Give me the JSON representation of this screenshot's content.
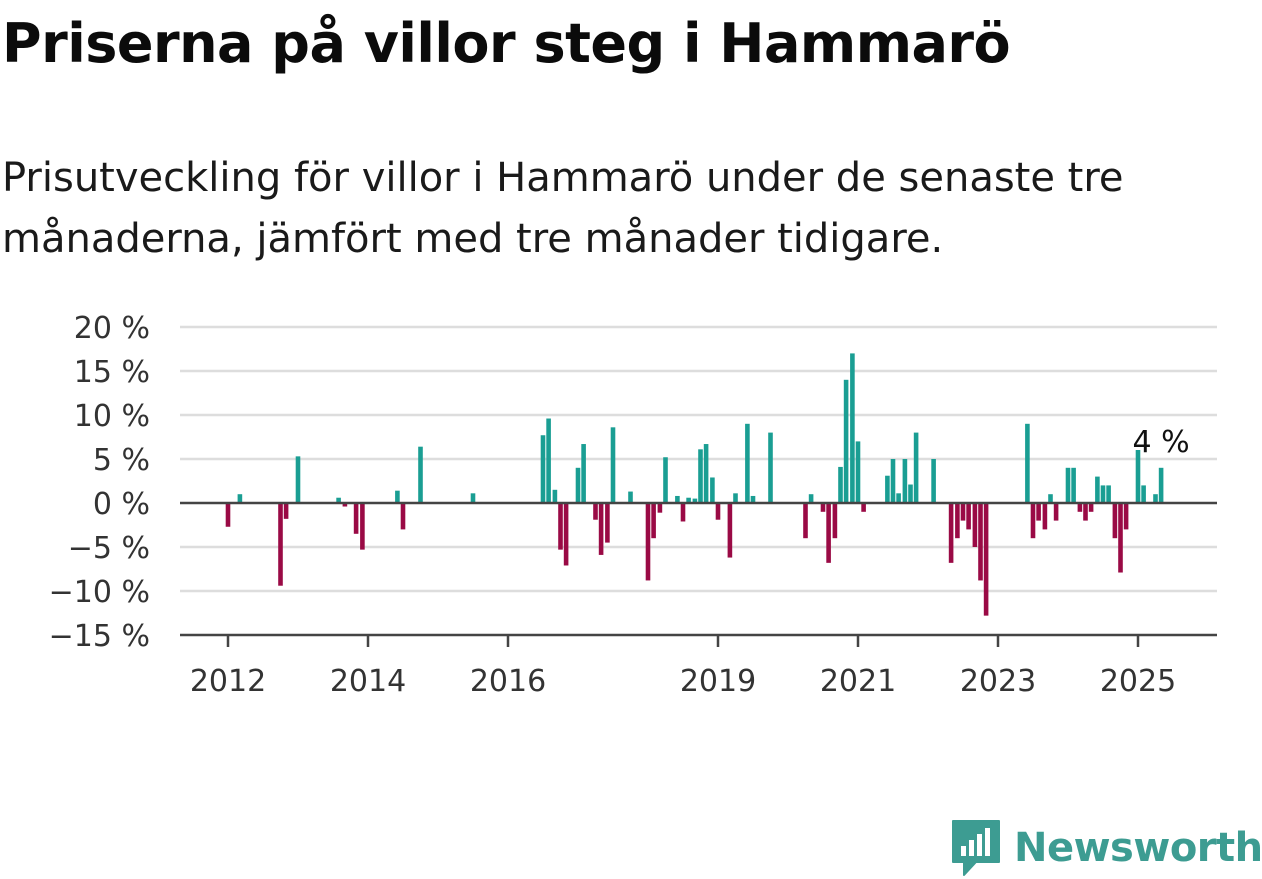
{
  "title": "Priserna på villor steg i Hammarö",
  "subtitle": "Prisutveckling för villor i Hammarö under de senaste tre månaderna, jämfört med tre månader tidigare.",
  "brand": "Newsworthy",
  "colors": {
    "positive": "#1a9e93",
    "negative": "#9a0a45",
    "grid": "#dddddd",
    "axis": "#444444",
    "brand": "#3d9c92"
  },
  "chart_data": {
    "type": "bar",
    "x_unit": "year",
    "y_unit": "%",
    "ylim": [
      -15,
      20
    ],
    "y_ticks": [
      20,
      15,
      10,
      5,
      0,
      -5,
      -10,
      -15
    ],
    "y_tick_labels": [
      "20 %",
      "15 %",
      "10 %",
      "5 %",
      "0 %",
      "−5 %",
      "−10 %",
      "−15 %"
    ],
    "x_ticks": [
      "2012",
      "2014",
      "2016",
      "2019",
      "2021",
      "2023",
      "2025"
    ],
    "annotation": "4 %",
    "grid": true,
    "points": [
      [
        2012.0,
        -2.7
      ],
      [
        2012.17,
        1.0
      ],
      [
        2012.75,
        -9.4
      ],
      [
        2012.83,
        -1.8
      ],
      [
        2013.0,
        5.3
      ],
      [
        2013.58,
        0.6
      ],
      [
        2013.67,
        -0.4
      ],
      [
        2013.83,
        -3.5
      ],
      [
        2013.92,
        -5.3
      ],
      [
        2014.42,
        1.4
      ],
      [
        2014.5,
        -3.0
      ],
      [
        2014.75,
        6.4
      ],
      [
        2015.5,
        1.1
      ],
      [
        2016.5,
        7.7
      ],
      [
        2016.58,
        9.6
      ],
      [
        2016.67,
        1.5
      ],
      [
        2016.75,
        -5.3
      ],
      [
        2016.83,
        -7.1
      ],
      [
        2017.0,
        4.0
      ],
      [
        2017.08,
        6.7
      ],
      [
        2017.25,
        -1.9
      ],
      [
        2017.33,
        -5.9
      ],
      [
        2017.42,
        -4.5
      ],
      [
        2017.5,
        8.6
      ],
      [
        2017.75,
        1.3
      ],
      [
        2018.0,
        -8.8
      ],
      [
        2018.08,
        -4.0
      ],
      [
        2018.17,
        -1.1
      ],
      [
        2018.25,
        5.2
      ],
      [
        2018.42,
        0.8
      ],
      [
        2018.5,
        -2.1
      ],
      [
        2018.58,
        0.6
      ],
      [
        2018.67,
        0.5
      ],
      [
        2018.75,
        6.1
      ],
      [
        2018.83,
        6.7
      ],
      [
        2018.92,
        2.9
      ],
      [
        2019.0,
        -1.9
      ],
      [
        2019.17,
        -6.2
      ],
      [
        2019.25,
        1.1
      ],
      [
        2019.42,
        9.0
      ],
      [
        2019.5,
        0.8
      ],
      [
        2019.75,
        8.0
      ],
      [
        2020.25,
        -4.0
      ],
      [
        2020.33,
        1.0
      ],
      [
        2020.5,
        -1.0
      ],
      [
        2020.58,
        -6.8
      ],
      [
        2020.67,
        -4.0
      ],
      [
        2020.75,
        4.1
      ],
      [
        2020.83,
        14.0
      ],
      [
        2020.92,
        17.0
      ],
      [
        2021.0,
        7.0
      ],
      [
        2021.08,
        -1.0
      ],
      [
        2021.42,
        3.1
      ],
      [
        2021.5,
        5.0
      ],
      [
        2021.58,
        1.1
      ],
      [
        2021.67,
        5.0
      ],
      [
        2021.75,
        2.1
      ],
      [
        2021.83,
        8.0
      ],
      [
        2022.08,
        5.0
      ],
      [
        2022.33,
        -6.8
      ],
      [
        2022.42,
        -4.0
      ],
      [
        2022.5,
        -2.0
      ],
      [
        2022.58,
        -3.0
      ],
      [
        2022.67,
        -5.0
      ],
      [
        2022.75,
        -8.8
      ],
      [
        2022.83,
        -12.8
      ],
      [
        2023.42,
        9.0
      ],
      [
        2023.5,
        -4.0
      ],
      [
        2023.58,
        -2.0
      ],
      [
        2023.67,
        -3.0
      ],
      [
        2023.75,
        1.0
      ],
      [
        2023.83,
        -2.0
      ],
      [
        2024.0,
        4.0
      ],
      [
        2024.08,
        4.0
      ],
      [
        2024.17,
        -1.0
      ],
      [
        2024.25,
        -2.0
      ],
      [
        2024.33,
        -1.0
      ],
      [
        2024.42,
        3.0
      ],
      [
        2024.5,
        2.0
      ],
      [
        2024.58,
        2.0
      ],
      [
        2024.67,
        -4.0
      ],
      [
        2024.75,
        -7.9
      ],
      [
        2024.83,
        -3.0
      ],
      [
        2025.0,
        6.2
      ],
      [
        2025.08,
        2.0
      ],
      [
        2025.25,
        1.0
      ],
      [
        2025.33,
        4.0
      ]
    ]
  }
}
